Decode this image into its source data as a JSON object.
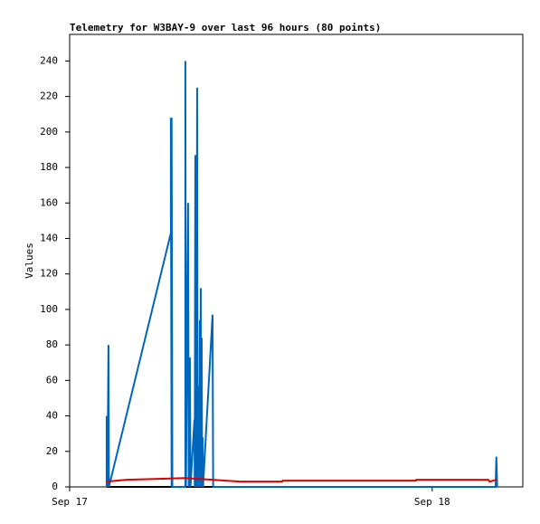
{
  "chart_data": {
    "type": "line",
    "title": "Telemetry for W3BAY-9 over last 96 hours (80 points)",
    "y_label": "Values",
    "xlim": [
      0,
      30
    ],
    "xticks": [
      {
        "value": 0,
        "label": "Sep 17"
      },
      {
        "value": 24,
        "label": "Sep 18"
      }
    ],
    "ylim": [
      0,
      255
    ],
    "yticks": [
      0,
      20,
      40,
      60,
      80,
      100,
      120,
      140,
      160,
      180,
      200,
      220,
      240
    ],
    "series": [
      {
        "color": "#000000",
        "x": [
          2.45,
          28.25
        ],
        "values": [
          0,
          0
        ]
      },
      {
        "color": "#0066bb",
        "x": [
          2.45,
          2.45,
          2.5,
          2.57,
          2.6,
          6.7,
          6.7,
          6.75,
          6.75,
          6.8,
          7.66,
          7.66,
          7.7,
          7.84,
          7.88,
          7.96,
          8.0,
          8.26,
          8.28,
          8.32,
          8.35,
          8.38,
          8.4,
          8.44,
          8.47,
          8.56,
          8.58,
          8.62,
          8.65,
          8.68,
          8.7,
          8.74,
          8.77,
          8.8,
          8.83,
          9.46,
          9.5,
          28.2,
          28.25,
          28.3
        ],
        "values": [
          0,
          40,
          0,
          80,
          0,
          143,
          208,
          0,
          208,
          0,
          0,
          240,
          0,
          160,
          0,
          73,
          0,
          38,
          0,
          187,
          0,
          112,
          0,
          225,
          0,
          57,
          0,
          94,
          0,
          112,
          0,
          84,
          0,
          28,
          0,
          97,
          0,
          0,
          17,
          0
        ]
      },
      {
        "color": "#dd0000",
        "x": [
          2.45,
          3.77,
          5.87,
          7.66,
          9.46,
          11.25,
          14.07,
          14.1,
          22.92,
          22.95,
          27.71,
          27.8,
          28.25
        ],
        "values": [
          3,
          4,
          4.5,
          5,
          4,
          3,
          3,
          3.5,
          3.5,
          4,
          4,
          3,
          4
        ]
      }
    ]
  }
}
